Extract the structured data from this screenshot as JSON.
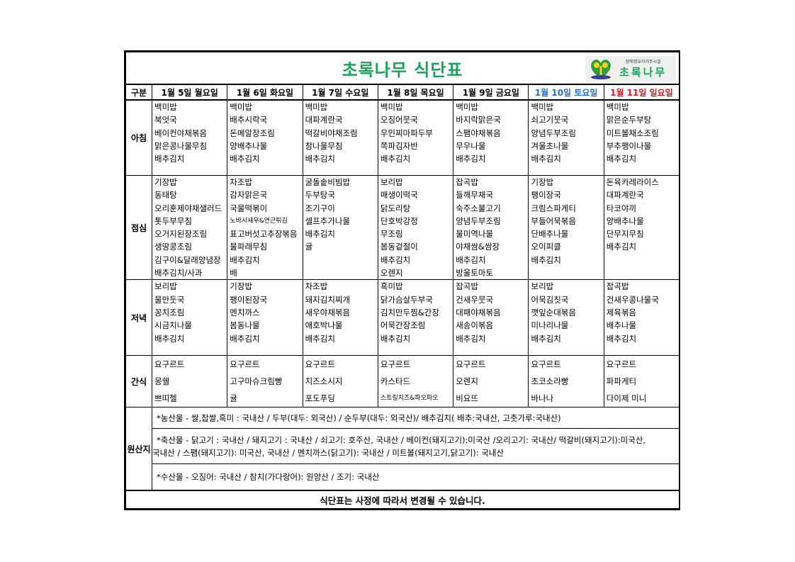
{
  "title": "초록나무 식단표",
  "logo": {
    "subtitle": "장애영유아거주시설",
    "name": "초록나무"
  },
  "header_label": "구분",
  "days": [
    {
      "label": "1월 5일 월요일",
      "color": "#000000"
    },
    {
      "label": "1월 6일 화요일",
      "color": "#000000"
    },
    {
      "label": "1월 7일 수요일",
      "color": "#000000"
    },
    {
      "label": "1월 8일 목요일",
      "color": "#000000"
    },
    {
      "label": "1월 9일 금요일",
      "color": "#000000"
    },
    {
      "label": "1월 10일 토요일",
      "color": "#1f6fd1"
    },
    {
      "label": "1월 11일 일요일",
      "color": "#e0141e"
    }
  ],
  "meals": [
    {
      "label": "아침",
      "items": [
        [
          "백미밥",
          "북엇국",
          "베이컨야채볶음",
          "맑은콩나물무침",
          "배추김치"
        ],
        [
          "백미밥",
          "배추시락국",
          "돈메알장조림",
          "양배추나물",
          "배추김치"
        ],
        [
          "백미밥",
          "대파계란국",
          "떡갈비야채조림",
          "참나물무침",
          "배추김치"
        ],
        [
          "백미밥",
          "오징어뭇국",
          "우민찌마파두부",
          "쪽파김자반",
          "배추김치"
        ],
        [
          "백미밥",
          "바지락맑은국",
          "스팸야채볶음",
          "무우나물",
          "배추김치"
        ],
        [
          "백미밥",
          "쇠고기뭇국",
          "양념두부조림",
          "겨울초나물",
          "배추김치"
        ],
        [
          "백미밥",
          "맑은순두부탕",
          "미트볼채소조림",
          "부추팽이나물",
          "배추김치"
        ]
      ]
    },
    {
      "label": "점심",
      "items": [
        [
          "기장밥",
          "동태탕",
          "오리훈제야채샐러드",
          "톳두부무침",
          "오거지된장조림",
          "생땅콩조림",
          "김구이&달래양념장",
          "배추김치/사과"
        ],
        [
          "차조밥",
          "감자맑은국",
          "국물떡볶이",
          "노바시새우&연근튀김",
          "표고버섯고추장볶음",
          "물파래무침",
          "배추김치",
          "배"
        ],
        [
          "굴돌솥비빔밥",
          "두부탕국",
          "조기구이",
          "셀프추가나물",
          "배추김치",
          "귤"
        ],
        [
          "보리밥",
          "매생이떡국",
          "닭도리탕",
          "단호박강정",
          "무조림",
          "봄동겉절이",
          "배추김치",
          "오렌지"
        ],
        [
          "잡곡밥",
          "들깨무채국",
          "숙주소불고기",
          "양념두부조림",
          "물미역나물",
          "야채쌈&쌈장",
          "배추김치",
          "방울토마토"
        ],
        [
          "기장밥",
          "팽이장국",
          "크림스파게티",
          "부들어묵볶음",
          "단배추나물",
          "오이피클",
          "배추김치"
        ],
        [
          "돈육카레라이스",
          "대파계란국",
          "타코야끼",
          "양배추나물",
          "단무지무침",
          "배추김치"
        ]
      ]
    },
    {
      "label": "저녁",
      "items": [
        [
          "보리밥",
          "물만둣국",
          "꽁치조림",
          "시금치나물",
          "배추김치"
        ],
        [
          "기장밥",
          "팽이된장국",
          "멘치까스",
          "봄동나물",
          "배추김치"
        ],
        [
          "차조밥",
          "돼지김치찌개",
          "새우야채볶음",
          "애호박나물",
          "배추김치"
        ],
        [
          "흑미밥",
          "닭가슴살두부국",
          "김치만두찜&간장",
          "어묵간장조림",
          "배추김치"
        ],
        [
          "잡곡밥",
          "건새우뭇국",
          "대패야채볶음",
          "새송이볶음",
          "배추김치"
        ],
        [
          "보리밥",
          "어묵김칫국",
          "깻잎순대볶음",
          "미나리나물",
          "배추김치"
        ],
        [
          "잡곡밥",
          "건새우콩나물국",
          "제육볶음",
          "배추나물",
          "배추김치"
        ]
      ]
    },
    {
      "label": "간식",
      "items": [
        [
          "요구르트",
          "몽쉘",
          "쁘띠첼"
        ],
        [
          "요구르트",
          "고구마슈크림빵",
          "귤"
        ],
        [
          "요구르트",
          "치즈소시지",
          "포도푸딩"
        ],
        [
          "요구르트",
          "카스타드",
          "스트링치즈&파오파오"
        ],
        [
          "요구르트",
          "오렌지",
          "비요뜨"
        ],
        [
          "요구르트",
          "초코소라빵",
          "바나나"
        ],
        [
          "요구르트",
          "파파게티",
          "다이제 미니"
        ]
      ]
    }
  ],
  "origin": {
    "label": "원산지",
    "agri": "*농산물 - 쌀,찹쌀,흑미 : 국내산 / 두부(대두: 외국산) / 순두부(대두: 외국산)/ 배추김치( 배추:국내산, 고춧가루:국내산)",
    "livestock_1": "*축산물 - 닭고기 : 국내산 / 돼지고기 : 국내산 / 쇠고기: 호주산, 국내산 / 베이컨(돼지고기):미국산  /오리고기: 국내산/ 떡갈비(돼지고기):미국산,",
    "livestock_2": "국내산 / 스팸(돼지고기): 미국산, 국내산 / 멘치까스(닭고기): 국내산 / 미트볼(돼지고기,닭고기): 국내산",
    "seafood": "*수산물 - 오징어: 국내산  / 참치(가다랑어): 원양산 / 조기: 국내산"
  },
  "footer": "식단표는 사정에 따라서 변경될 수 있습니다."
}
